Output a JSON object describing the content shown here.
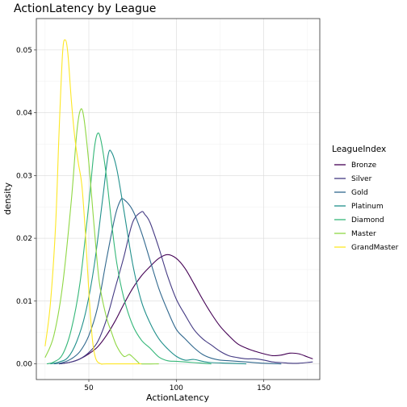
{
  "chart_data": {
    "type": "line",
    "title": "ActionLatency by League",
    "xlabel": "ActionLatency",
    "ylabel": "density",
    "xlim": [
      20,
      182
    ],
    "ylim": [
      -0.0025,
      0.055
    ],
    "x_ticks": [
      50,
      100,
      150
    ],
    "y_ticks": [
      0.0,
      0.01,
      0.02,
      0.03,
      0.04,
      0.05
    ],
    "y_tick_labels": [
      "0.00",
      "0.01",
      "0.02",
      "0.03",
      "0.04",
      "0.05"
    ],
    "grid": true,
    "legend": {
      "title": "LeagueIndex",
      "placement": "right"
    },
    "series": [
      {
        "name": "Bronze",
        "color": "#440154",
        "points": [
          [
            33,
            0
          ],
          [
            40,
            0.0003
          ],
          [
            45,
            0.0008
          ],
          [
            50,
            0.0016
          ],
          [
            55,
            0.0027
          ],
          [
            60,
            0.0045
          ],
          [
            65,
            0.0068
          ],
          [
            70,
            0.0095
          ],
          [
            75,
            0.012
          ],
          [
            80,
            0.014
          ],
          [
            85,
            0.0155
          ],
          [
            90,
            0.0168
          ],
          [
            95,
            0.0174
          ],
          [
            100,
            0.0168
          ],
          [
            105,
            0.0152
          ],
          [
            110,
            0.0128
          ],
          [
            115,
            0.0103
          ],
          [
            120,
            0.008
          ],
          [
            125,
            0.006
          ],
          [
            130,
            0.0045
          ],
          [
            135,
            0.0032
          ],
          [
            140,
            0.0025
          ],
          [
            145,
            0.002
          ],
          [
            150,
            0.0016
          ],
          [
            155,
            0.0013
          ],
          [
            160,
            0.0014
          ],
          [
            165,
            0.0017
          ],
          [
            170,
            0.0016
          ],
          [
            175,
            0.0011
          ],
          [
            178,
            0.0008
          ]
        ]
      },
      {
        "name": "Silver",
        "color": "#443A83",
        "points": [
          [
            33,
            0
          ],
          [
            40,
            0.0003
          ],
          [
            45,
            0.0008
          ],
          [
            50,
            0.0018
          ],
          [
            55,
            0.0035
          ],
          [
            60,
            0.007
          ],
          [
            65,
            0.012
          ],
          [
            70,
            0.017
          ],
          [
            75,
            0.0225
          ],
          [
            80,
            0.0242
          ],
          [
            82,
            0.0238
          ],
          [
            85,
            0.0225
          ],
          [
            90,
            0.0185
          ],
          [
            95,
            0.014
          ],
          [
            100,
            0.0103
          ],
          [
            105,
            0.0078
          ],
          [
            110,
            0.0055
          ],
          [
            115,
            0.004
          ],
          [
            120,
            0.003
          ],
          [
            125,
            0.002
          ],
          [
            130,
            0.0013
          ],
          [
            135,
            0.001
          ],
          [
            140,
            0.0008
          ],
          [
            145,
            0.0008
          ],
          [
            150,
            0.0006
          ],
          [
            155,
            0.0003
          ],
          [
            160,
            0.0002
          ],
          [
            165,
            0.0001
          ],
          [
            170,
            0.0001
          ],
          [
            178,
            0.0003
          ]
        ]
      },
      {
        "name": "Gold",
        "color": "#31688E",
        "points": [
          [
            30,
            0
          ],
          [
            35,
            0.0002
          ],
          [
            40,
            0.0008
          ],
          [
            45,
            0.002
          ],
          [
            50,
            0.0045
          ],
          [
            55,
            0.009
          ],
          [
            60,
            0.0165
          ],
          [
            65,
            0.0235
          ],
          [
            68,
            0.026
          ],
          [
            70,
            0.0262
          ],
          [
            75,
            0.0245
          ],
          [
            80,
            0.021
          ],
          [
            85,
            0.0165
          ],
          [
            90,
            0.012
          ],
          [
            95,
            0.0085
          ],
          [
            100,
            0.0055
          ],
          [
            105,
            0.004
          ],
          [
            110,
            0.0026
          ],
          [
            115,
            0.0015
          ],
          [
            120,
            0.0009
          ],
          [
            125,
            0.0006
          ],
          [
            130,
            0.0005
          ],
          [
            140,
            0.0003
          ],
          [
            150,
            0.0001
          ],
          [
            160,
            0
          ]
        ]
      },
      {
        "name": "Platinum",
        "color": "#21908C",
        "points": [
          [
            28,
            0
          ],
          [
            33,
            0.0003
          ],
          [
            38,
            0.001
          ],
          [
            43,
            0.0035
          ],
          [
            48,
            0.008
          ],
          [
            53,
            0.0155
          ],
          [
            58,
            0.0265
          ],
          [
            61,
            0.0332
          ],
          [
            63,
            0.0337
          ],
          [
            66,
            0.031
          ],
          [
            70,
            0.0245
          ],
          [
            75,
            0.016
          ],
          [
            80,
            0.01
          ],
          [
            85,
            0.0065
          ],
          [
            90,
            0.004
          ],
          [
            95,
            0.0024
          ],
          [
            100,
            0.0012
          ],
          [
            105,
            0.0006
          ],
          [
            110,
            0.0007
          ],
          [
            115,
            0.0004
          ],
          [
            120,
            0.0002
          ],
          [
            130,
            0.0001
          ],
          [
            140,
            0
          ]
        ]
      },
      {
        "name": "Diamond",
        "color": "#35B779",
        "points": [
          [
            26,
            0
          ],
          [
            30,
            0.0003
          ],
          [
            35,
            0.0015
          ],
          [
            40,
            0.0055
          ],
          [
            45,
            0.013
          ],
          [
            50,
            0.0255
          ],
          [
            53,
            0.034
          ],
          [
            55,
            0.0367
          ],
          [
            57,
            0.0355
          ],
          [
            60,
            0.03
          ],
          [
            63,
            0.0225
          ],
          [
            66,
            0.016
          ],
          [
            70,
            0.0105
          ],
          [
            75,
            0.0062
          ],
          [
            80,
            0.0038
          ],
          [
            85,
            0.0025
          ],
          [
            90,
            0.0011
          ],
          [
            95,
            0.0005
          ],
          [
            100,
            0.0004
          ],
          [
            105,
            0.0003
          ],
          [
            110,
            0.0002
          ],
          [
            120,
            0
          ]
        ]
      },
      {
        "name": "Master",
        "color": "#8FD744",
        "points": [
          [
            25,
            0.001
          ],
          [
            30,
            0.0045
          ],
          [
            35,
            0.0125
          ],
          [
            40,
            0.026
          ],
          [
            43,
            0.0365
          ],
          [
            45,
            0.0403
          ],
          [
            47,
            0.0395
          ],
          [
            50,
            0.032
          ],
          [
            53,
            0.022
          ],
          [
            56,
            0.013
          ],
          [
            60,
            0.0075
          ],
          [
            63,
            0.005
          ],
          [
            66,
            0.0028
          ],
          [
            70,
            0.0012
          ],
          [
            73,
            0.0015
          ],
          [
            75,
            0.0011
          ],
          [
            78,
            0.0003
          ],
          [
            80,
            0
          ],
          [
            90,
            0
          ]
        ]
      },
      {
        "name": "GrandMaster",
        "color": "#FDE725",
        "points": [
          [
            25,
            0.0028
          ],
          [
            28,
            0.0095
          ],
          [
            31,
            0.022
          ],
          [
            33,
            0.037
          ],
          [
            35,
            0.0495
          ],
          [
            36.5,
            0.0516
          ],
          [
            38,
            0.0495
          ],
          [
            40,
            0.042
          ],
          [
            42,
            0.036
          ],
          [
            44,
            0.032
          ],
          [
            46,
            0.0285
          ],
          [
            48,
            0.021
          ],
          [
            50,
            0.0115
          ],
          [
            52,
            0.004
          ],
          [
            54,
            0.0008
          ],
          [
            57,
            0
          ],
          [
            60,
            0
          ],
          [
            80,
            0
          ]
        ]
      }
    ]
  }
}
